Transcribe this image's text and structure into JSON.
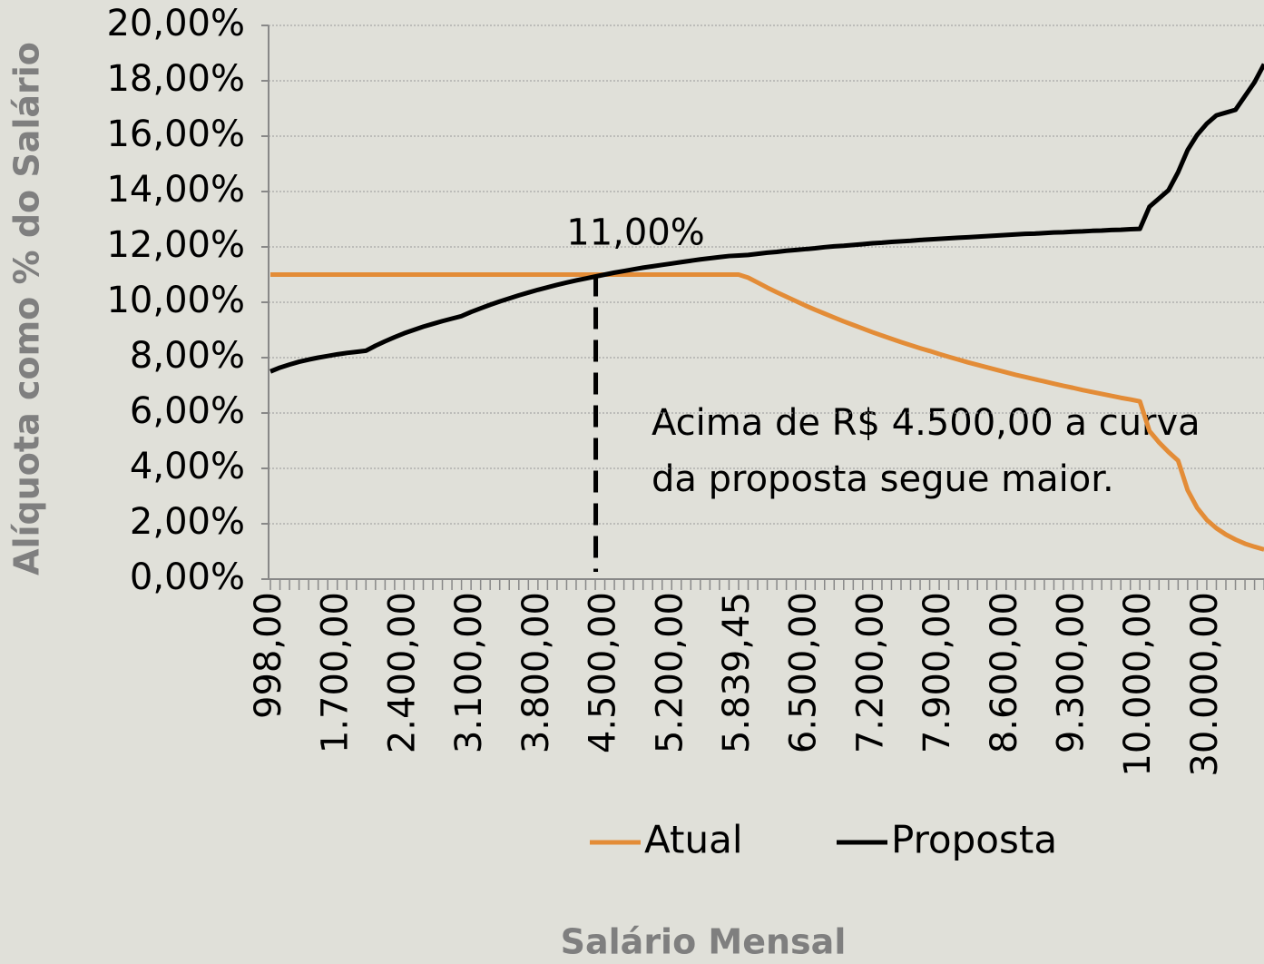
{
  "chart_data": {
    "type": "line",
    "y_label": "Alíquota como % do Salário",
    "x_label": "Salário Mensal",
    "categories": [
      "998,00",
      null,
      null,
      null,
      null,
      null,
      null,
      "1.700,00",
      null,
      null,
      null,
      null,
      null,
      null,
      "2.400,00",
      null,
      null,
      null,
      null,
      null,
      null,
      "3.100,00",
      null,
      null,
      null,
      null,
      null,
      null,
      "3.800,00",
      null,
      null,
      null,
      null,
      null,
      null,
      "4.500,00",
      null,
      null,
      null,
      null,
      null,
      null,
      "5.200,00",
      null,
      null,
      null,
      null,
      null,
      null,
      "5.839,45",
      null,
      null,
      null,
      null,
      null,
      null,
      "6.500,00",
      null,
      null,
      null,
      null,
      null,
      null,
      "7.200,00",
      null,
      null,
      null,
      null,
      null,
      null,
      "7.900,00",
      null,
      null,
      null,
      null,
      null,
      null,
      "8.600,00",
      null,
      null,
      null,
      null,
      null,
      null,
      "9.300,00",
      null,
      null,
      null,
      null,
      null,
      null,
      "10.000,00",
      null,
      null,
      null,
      null,
      null,
      null,
      "30.000,00",
      null,
      null,
      null,
      null,
      null,
      null
    ],
    "series": [
      {
        "name": "Atual",
        "color": "#e38c37",
        "values": [
          11,
          11,
          11,
          11,
          11,
          11,
          11,
          11,
          11,
          11,
          11,
          11,
          11,
          11,
          11,
          11,
          11,
          11,
          11,
          11,
          11,
          11,
          11,
          11,
          11,
          11,
          11,
          11,
          11,
          11,
          11,
          11,
          11,
          11,
          11,
          11,
          11,
          11,
          11,
          11,
          11,
          11,
          11,
          11,
          11,
          11,
          11,
          11,
          11,
          11,
          10.89,
          10.71,
          10.53,
          10.36,
          10.2,
          10.04,
          9.88,
          9.73,
          9.59,
          9.45,
          9.31,
          9.18,
          9.05,
          8.92,
          8.8,
          8.68,
          8.56,
          8.45,
          8.34,
          8.24,
          8.13,
          8.03,
          7.93,
          7.83,
          7.74,
          7.65,
          7.56,
          7.47,
          7.38,
          7.3,
          7.22,
          7.14,
          7.06,
          6.98,
          6.91,
          6.83,
          6.76,
          6.69,
          6.62,
          6.55,
          6.49,
          6.42,
          5.35,
          4.94,
          4.59,
          4.28,
          3.21,
          2.57,
          2.14,
          1.84,
          1.61,
          1.43,
          1.28,
          1.17,
          1.07
        ]
      },
      {
        "name": "Proposta",
        "color": "#000000",
        "values": [
          7.5,
          7.64,
          7.75,
          7.85,
          7.93,
          8.0,
          8.06,
          8.12,
          8.17,
          8.21,
          8.25,
          8.43,
          8.59,
          8.74,
          8.88,
          9.0,
          9.12,
          9.22,
          9.32,
          9.41,
          9.5,
          9.65,
          9.78,
          9.91,
          10.03,
          10.14,
          10.25,
          10.35,
          10.45,
          10.54,
          10.63,
          10.71,
          10.79,
          10.86,
          10.93,
          11.0,
          11.07,
          11.13,
          11.19,
          11.25,
          11.3,
          11.35,
          11.4,
          11.45,
          11.5,
          11.55,
          11.59,
          11.63,
          11.67,
          11.69,
          11.71,
          11.75,
          11.79,
          11.82,
          11.86,
          11.89,
          11.92,
          11.95,
          11.99,
          12.02,
          12.04,
          12.07,
          12.1,
          12.13,
          12.15,
          12.18,
          12.2,
          12.22,
          12.25,
          12.27,
          12.29,
          12.31,
          12.33,
          12.35,
          12.37,
          12.39,
          12.41,
          12.43,
          12.45,
          12.47,
          12.48,
          12.5,
          12.52,
          12.53,
          12.55,
          12.56,
          12.58,
          12.59,
          12.61,
          12.62,
          12.64,
          12.65,
          13.45,
          13.75,
          14.05,
          14.7,
          15.5,
          16.05,
          16.45,
          16.75,
          16.85,
          16.95,
          17.45,
          17.95,
          18.6
        ]
      }
    ],
    "ylim": [
      0,
      20
    ],
    "yticks": [
      {
        "value": 0,
        "label": "0,00%"
      },
      {
        "value": 2,
        "label": "2,00%"
      },
      {
        "value": 4,
        "label": "4,00%"
      },
      {
        "value": 6,
        "label": "6,00%"
      },
      {
        "value": 8,
        "label": "8,00%"
      },
      {
        "value": 10,
        "label": "10,00%"
      },
      {
        "value": 12,
        "label": "12,00%"
      },
      {
        "value": 14,
        "label": "14,00%"
      },
      {
        "value": 16,
        "label": "16,00%"
      },
      {
        "value": 18,
        "label": "18,00%"
      },
      {
        "value": 20,
        "label": "20,00%"
      }
    ],
    "grid": true,
    "legend": "bottom",
    "annotations": [
      {
        "text": "11,00%",
        "x": "4.500,00",
        "value": 11
      },
      {
        "text": "Acima de R$ 4.500,00 a curva"
      },
      {
        "text": "da proposta segue maior."
      }
    ]
  }
}
